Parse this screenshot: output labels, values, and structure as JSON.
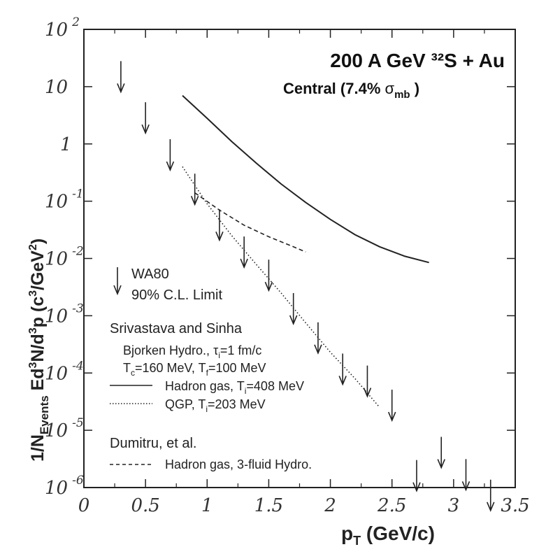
{
  "chart_data": {
    "type": "scatter",
    "title": "200 A GeV ³²S + Au",
    "subtitle": {
      "prefix": "Central (7.4% ",
      "sigma": "σ",
      "sub": "mb",
      "suffix": " )"
    },
    "xlabel": {
      "p": "p",
      "sub": "T",
      "rest": " (GeV/c)"
    },
    "ylabel": "1/N_Events Ed³N/d³p (c³/GeV²)",
    "x_range": [
      0,
      3.5
    ],
    "y_range_log10": [
      -6,
      2
    ],
    "y_scale": "log",
    "grid": false,
    "x_ticks": [
      "0",
      "0.5",
      "1",
      "1.5",
      "2",
      "2.5",
      "3",
      "3.5"
    ],
    "y_ticks": [
      {
        "base": "10",
        "exp": "2",
        "value": 100
      },
      {
        "base": "10",
        "exp": "",
        "value": 10
      },
      {
        "base": "1",
        "exp": "",
        "value": 1
      },
      {
        "base": "10",
        "exp": "-1",
        "value": 0.1
      },
      {
        "base": "10",
        "exp": "-2",
        "value": 0.01
      },
      {
        "base": "10",
        "exp": "-3",
        "value": 0.001
      },
      {
        "base": "10",
        "exp": "-4",
        "value": 0.0001
      },
      {
        "base": "10",
        "exp": "-5",
        "value": 1e-05
      },
      {
        "base": "10",
        "exp": "-6",
        "value": 1e-06
      }
    ],
    "wa80_limits": {
      "name": "WA80",
      "x": [
        0.3,
        0.5,
        0.7,
        0.9,
        1.1,
        1.3,
        1.5,
        1.7,
        1.9,
        2.1,
        2.3,
        2.5,
        2.7,
        2.9,
        3.1,
        3.3
      ],
      "y": [
        12,
        2.3,
        0.52,
        0.13,
        0.031,
        0.0104,
        0.0041,
        0.00107,
        0.00033,
        9.4e-05,
        5.8e-05,
        2.2e-05,
        1.3e-06,
        3.3e-06,
        1.35e-06,
        5.9e-07
      ]
    },
    "series": [
      {
        "name": "Hadron gas, Ti=408 MeV",
        "style": "solid",
        "x": [
          0.8,
          1.0,
          1.2,
          1.4,
          1.6,
          1.8,
          2.0,
          2.2,
          2.4,
          2.6,
          2.8
        ],
        "y": [
          7,
          2.8,
          1.1,
          0.46,
          0.2,
          0.095,
          0.048,
          0.026,
          0.016,
          0.011,
          0.0085
        ]
      },
      {
        "name": "QGP, Ti=203 MeV",
        "style": "dotted",
        "x": [
          0.8,
          1.0,
          1.2,
          1.4,
          1.6,
          1.8,
          2.0,
          2.2,
          2.4
        ],
        "y": [
          0.4,
          0.09,
          0.025,
          0.0078,
          0.0025,
          0.00075,
          0.00023,
          8e-05,
          2.5e-05
        ]
      },
      {
        "name": "Hadron gas, 3-fluid Hydro.",
        "style": "dashed",
        "x": [
          0.9,
          1.1,
          1.3,
          1.5,
          1.7,
          1.8
        ],
        "y": [
          0.14,
          0.07,
          0.038,
          0.024,
          0.016,
          0.013
        ]
      }
    ],
    "legend": {
      "wa80": "WA80",
      "wa80_cl": "90% C.L. Limit",
      "group1_title": "Srivastava and Sinha",
      "group1_line1": {
        "prefix": "Bjorken Hydro., ",
        "tau": "τ",
        "sub": "i",
        "suffix": "=1 fm/c"
      },
      "group1_line2": {
        "tc": "T",
        "tc_sub": "c",
        "tc_val": "=160 MeV, ",
        "tf": "T",
        "tf_sub": "f",
        "tf_val": "=100 MeV"
      },
      "solid_label": {
        "prefix": "Hadron gas, T",
        "sub": "i",
        "suffix": "=408 MeV"
      },
      "dotted_label": {
        "prefix": "QGP, T",
        "sub": "i",
        "suffix": "=203 MeV"
      },
      "group2_title": "Dumitru, et al.",
      "dashed_label": "Hadron gas, 3-fluid Hydro."
    }
  }
}
